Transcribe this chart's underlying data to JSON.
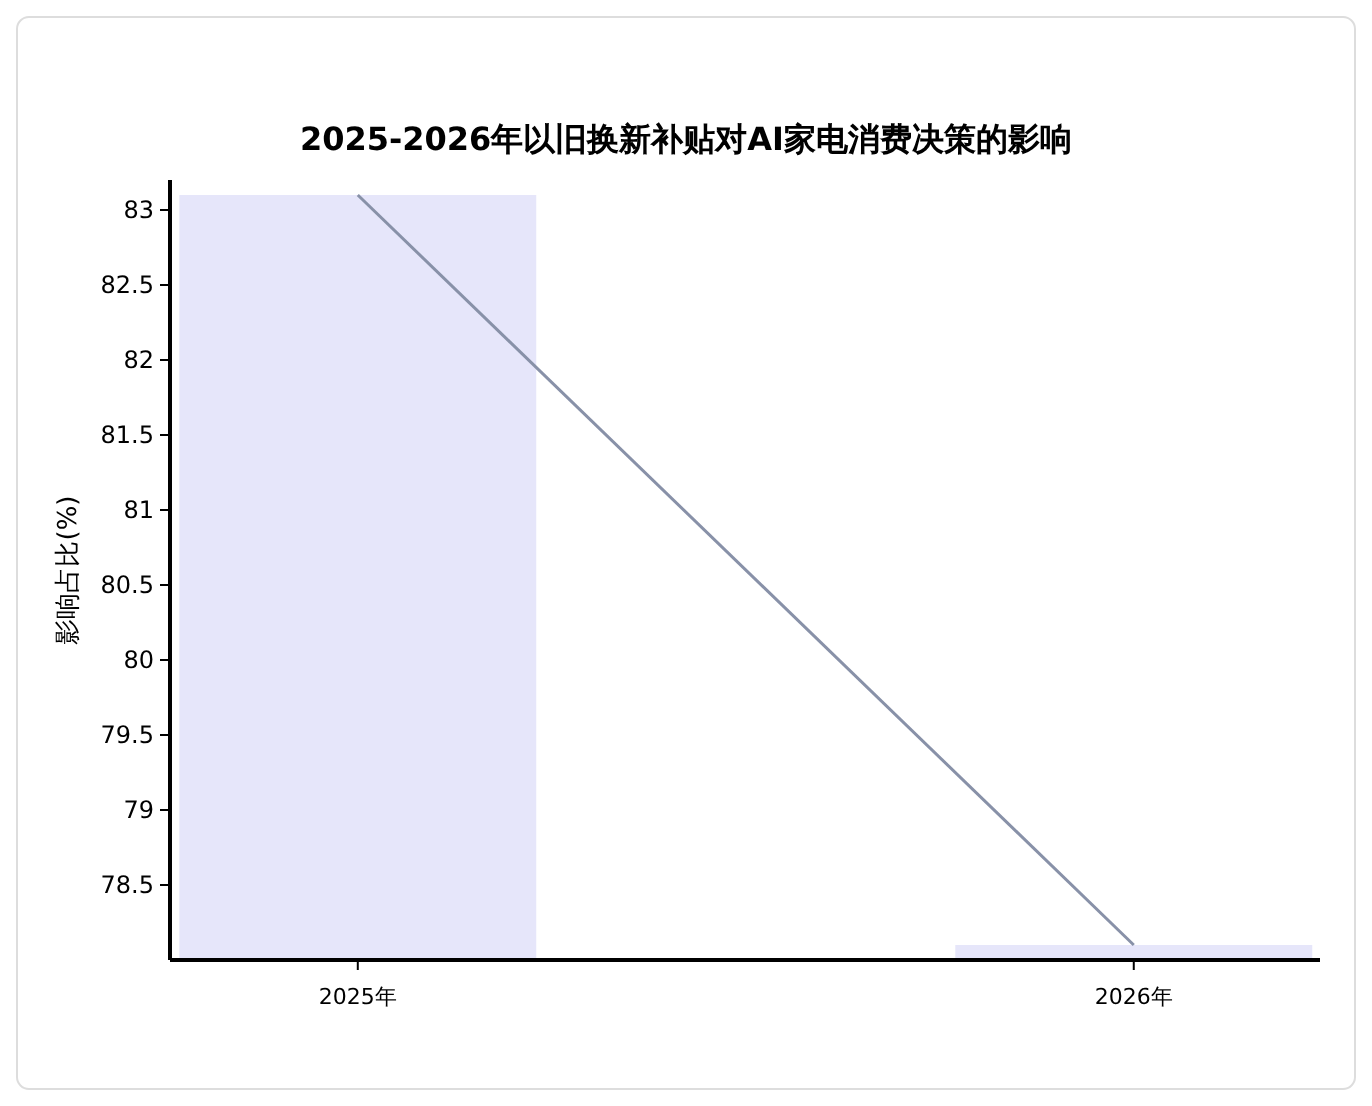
{
  "chart_data": {
    "type": "bar",
    "title": "2025-2026年以旧换新补贴对AI家电消费决策的影响",
    "ylabel": "影响占比(%)",
    "categories": [
      "2025年",
      "2026年"
    ],
    "series": [
      {
        "color": "#e6e6fa",
        "values": [
          83.1,
          78.1
        ]
      },
      {
        "type": "line",
        "color": "#8891a8",
        "values": [
          83.1,
          78.1
        ]
      }
    ],
    "ylim": [
      78,
      83.2
    ],
    "yticks": [
      78.5,
      79,
      79.5,
      80,
      80.5,
      81,
      81.5,
      82,
      82.5,
      83
    ],
    "grid": false
  }
}
